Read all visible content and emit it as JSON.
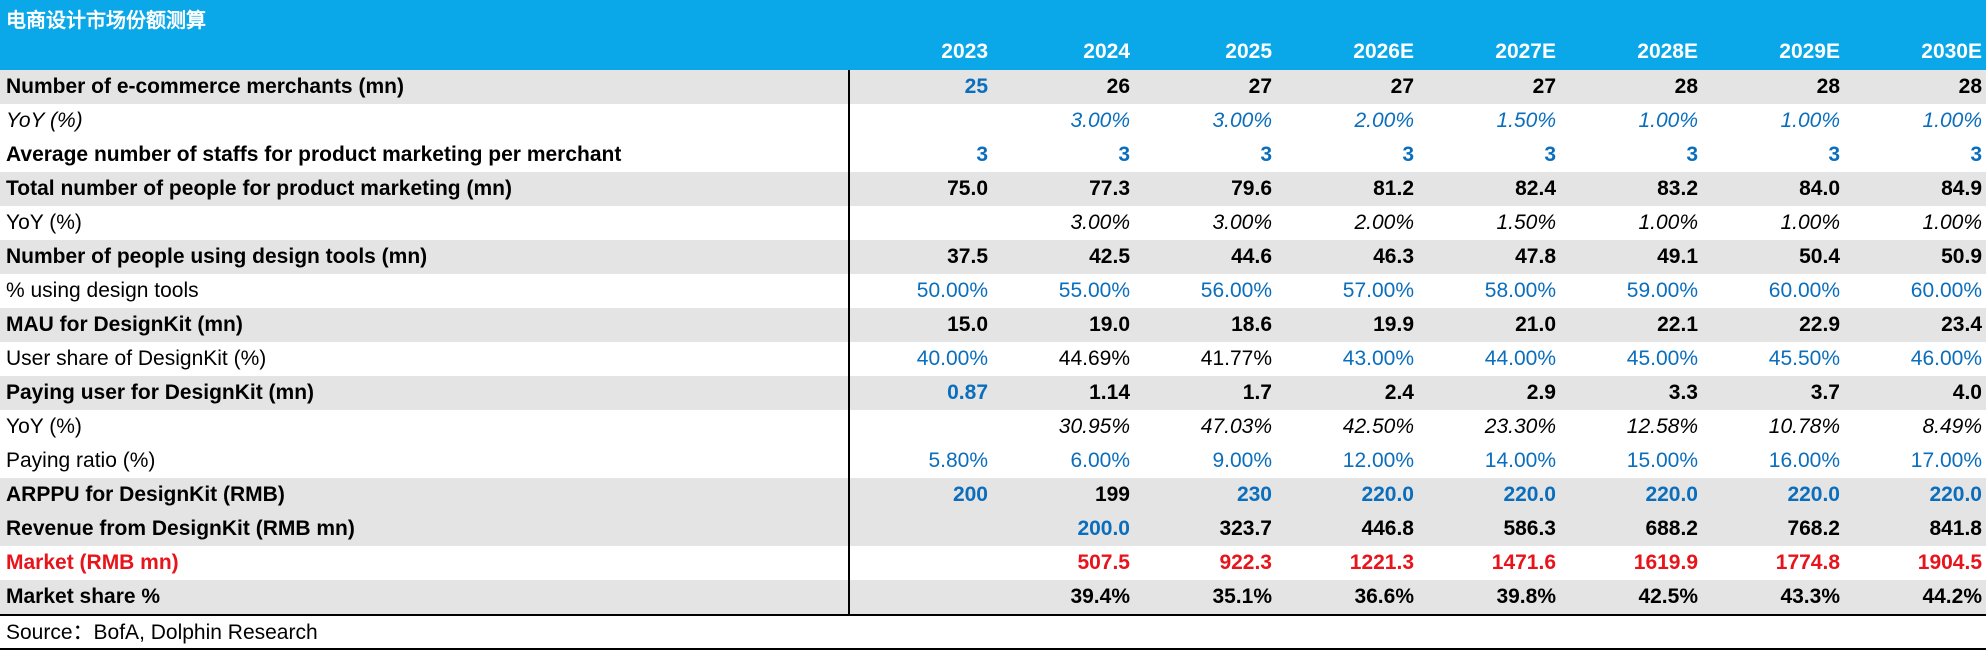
{
  "header": {
    "title": "电商设计市场份额测算",
    "years": [
      "2023",
      "2024",
      "2025",
      "2026E",
      "2027E",
      "2028E",
      "2029E",
      "2030E"
    ]
  },
  "table": {
    "rows": [
      {
        "label": "Number of e-commerce merchants (mn)",
        "cells": [
          "25",
          "26",
          "27",
          "27",
          "27",
          "28",
          "28",
          "28"
        ]
      },
      {
        "label": "YoY (%)",
        "cells": [
          null,
          "3.00%",
          "3.00%",
          "2.00%",
          "1.50%",
          "1.00%",
          "1.00%",
          "1.00%"
        ]
      },
      {
        "label": "Average number of staffs for product marketing per merchant",
        "cells": [
          "3",
          "3",
          "3",
          "3",
          "3",
          "3",
          "3",
          "3"
        ]
      },
      {
        "label": "Total number of people for product marketing (mn)",
        "cells": [
          "75.0",
          "77.3",
          "79.6",
          "81.2",
          "82.4",
          "83.2",
          "84.0",
          "84.9"
        ]
      },
      {
        "label": "YoY (%)",
        "cells": [
          null,
          "3.00%",
          "3.00%",
          "2.00%",
          "1.50%",
          "1.00%",
          "1.00%",
          "1.00%"
        ]
      },
      {
        "label": "Number of people using design tools (mn)",
        "cells": [
          "37.5",
          "42.5",
          "44.6",
          "46.3",
          "47.8",
          "49.1",
          "50.4",
          "50.9"
        ]
      },
      {
        "label": "% using design tools",
        "cells": [
          "50.00%",
          "55.00%",
          "56.00%",
          "57.00%",
          "58.00%",
          "59.00%",
          "60.00%",
          "60.00%"
        ]
      },
      {
        "label": "MAU for DesignKit (mn)",
        "cells": [
          "15.0",
          "19.0",
          "18.6",
          "19.9",
          "21.0",
          "22.1",
          "22.9",
          "23.4"
        ]
      },
      {
        "label": "User share of DesignKit (%)",
        "cells": [
          "40.00%",
          "44.69%",
          "41.77%",
          "43.00%",
          "44.00%",
          "45.00%",
          "45.50%",
          "46.00%"
        ]
      },
      {
        "label": "Paying user for DesignKit (mn)",
        "cells": [
          "0.87",
          "1.14",
          "1.7",
          "2.4",
          "2.9",
          "3.3",
          "3.7",
          "4.0"
        ]
      },
      {
        "label": "YoY (%)",
        "cells": [
          null,
          "30.95%",
          "47.03%",
          "42.50%",
          "23.30%",
          "12.58%",
          "10.78%",
          "8.49%"
        ]
      },
      {
        "label": "Paying ratio (%)",
        "cells": [
          "5.80%",
          "6.00%",
          "9.00%",
          "12.00%",
          "14.00%",
          "15.00%",
          "16.00%",
          "17.00%"
        ]
      },
      {
        "label": "ARPPU for DesignKit (RMB)",
        "cells": [
          "200",
          "199",
          "230",
          "220.0",
          "220.0",
          "220.0",
          "220.0",
          "220.0"
        ]
      },
      {
        "label": "Revenue from DesignKit (RMB mn)",
        "cells": [
          null,
          "200.0",
          "323.7",
          "446.8",
          "586.3",
          "688.2",
          "768.2",
          "841.8"
        ]
      },
      {
        "label": "Market (RMB mn)",
        "cells": [
          null,
          "507.5",
          "922.3",
          "1221.3",
          "1471.6",
          "1619.9",
          "1774.8",
          "1904.5"
        ]
      },
      {
        "label": "Market share %",
        "cells": [
          null,
          "39.4%",
          "35.1%",
          "36.6%",
          "39.8%",
          "42.5%",
          "43.3%",
          "44.2%"
        ]
      }
    ]
  },
  "footer": {
    "source": "Source：BofA, Dolphin Research"
  }
}
